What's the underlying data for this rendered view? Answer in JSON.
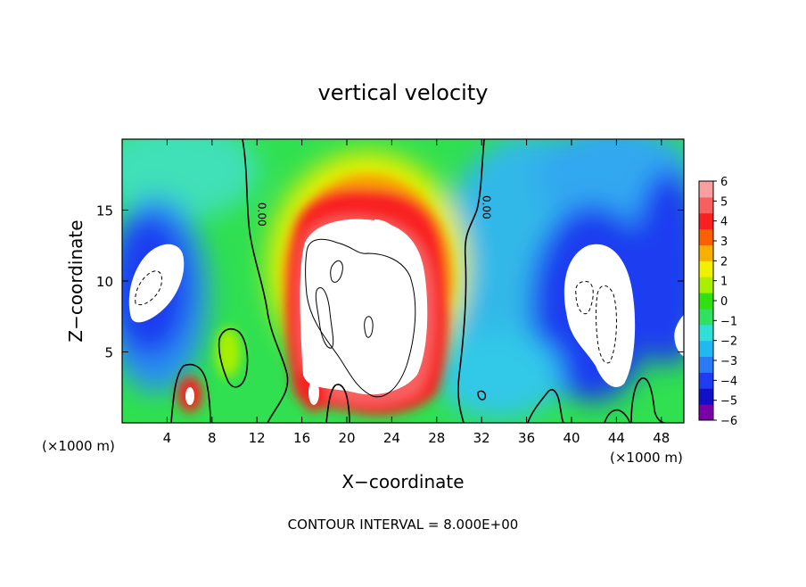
{
  "chart_data": {
    "type": "heatmap",
    "title": "vertical velocity",
    "xlabel": "X−coordinate",
    "ylabel": "Z−coordinate",
    "x_unit_left": "(×1000 m)",
    "x_unit_right": "(×1000 m)",
    "footer": "CONTOUR INTERVAL = 8.000E+00",
    "xlim": [
      0,
      50
    ],
    "ylim": [
      0,
      20
    ],
    "x_ticks": [
      4,
      8,
      12,
      16,
      20,
      24,
      28,
      32,
      36,
      40,
      44,
      48
    ],
    "x_tick_labels": [
      "4",
      "8",
      "12",
      "16",
      "20",
      "24",
      "28",
      "32",
      "36",
      "40",
      "44",
      "48"
    ],
    "y_ticks": [
      5,
      10,
      15
    ],
    "y_tick_labels": [
      "5",
      "10",
      "15"
    ],
    "contour_labels": [
      {
        "text": "0.00",
        "x": 11.8,
        "y": 14.7,
        "rotation": 90
      },
      {
        "text": "0.00",
        "x": 31.8,
        "y": 15.2,
        "rotation": 90
      }
    ],
    "colorbar": {
      "min": -6,
      "max": 6,
      "ticks": [
        6,
        5,
        4,
        3,
        2,
        1,
        0,
        -1,
        -2,
        -3,
        -4,
        -5,
        -6
      ],
      "tick_labels": [
        "6",
        "5",
        "4",
        "3",
        "2",
        "1",
        "0",
        "−1",
        "−2",
        "−3",
        "−4",
        "−5",
        "−6"
      ],
      "colors": [
        "#7a00a8",
        "#1010c8",
        "#1e3cf0",
        "#2a7af5",
        "#20b8f0",
        "#30e0d8",
        "#30e060",
        "#30e010",
        "#a8f000",
        "#f0f000",
        "#f8b000",
        "#f86000",
        "#f82020",
        "#f86060",
        "#f8a0a0"
      ]
    },
    "features": [
      {
        "kind": "updraft-core",
        "x": 22,
        "y": 8.5,
        "value": 12
      },
      {
        "kind": "downdraft",
        "x": 4,
        "y": 9,
        "value": -8
      },
      {
        "kind": "downdraft",
        "x": 42,
        "y": 8,
        "value": -9
      },
      {
        "kind": "downdraft",
        "x": 49.5,
        "y": 6,
        "value": -7
      }
    ]
  }
}
